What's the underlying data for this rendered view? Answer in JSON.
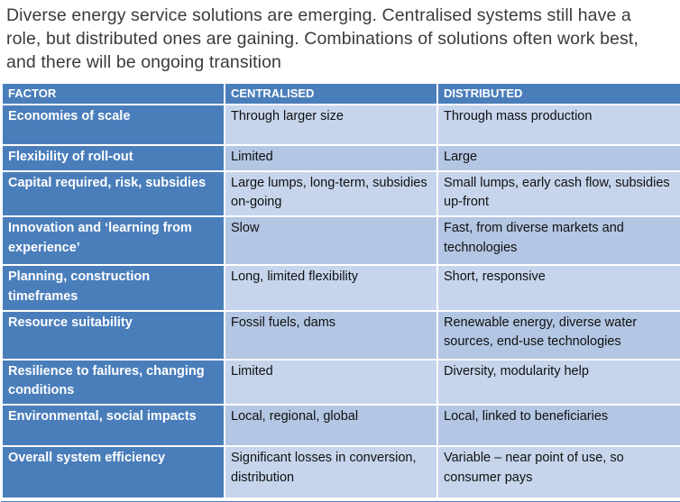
{
  "title": "Diverse energy service solutions are emerging. Centralised systems still have a role, but distributed ones are gaining. Combinations of solutions often work best, and there will be ongoing transition",
  "table": {
    "headers": [
      "FACTOR",
      "CENTRALISED",
      "DISTRIBUTED"
    ],
    "rows": [
      {
        "factor": "Economies of scale",
        "centralised": "Through larger size",
        "distributed": "Through mass production"
      },
      {
        "factor": "Flexibility of roll-out",
        "centralised": "Limited",
        "distributed": "Large"
      },
      {
        "factor": "Capital required, risk, subsidies",
        "centralised": "Large lumps, long-term, subsidies on-going",
        "distributed": "Small lumps, early cash flow, subsidies up-front"
      },
      {
        "factor": "Innovation and ‘learning from experience’",
        "centralised": "Slow",
        "distributed": "Fast, from diverse markets and technologies"
      },
      {
        "factor": "Planning, construction timeframes",
        "centralised": "Long, limited flexibility",
        "distributed": "Short, responsive"
      },
      {
        "factor": "Resource suitability",
        "centralised": "Fossil fuels, dams",
        "distributed": "Renewable energy, diverse water sources, end-use technologies"
      },
      {
        "factor": "Resilience to failures, changing conditions",
        "centralised": "Limited",
        "distributed": "Diversity, modularity help"
      },
      {
        "factor": "Environmental, social impacts",
        "centralised": "Local, regional, global",
        "distributed": "Local, linked to beneficiaries"
      },
      {
        "factor": "Overall system efficiency",
        "centralised": "Significant losses in conversion, distribution",
        "distributed": "Variable – near point of use, so consumer pays"
      }
    ],
    "colors": {
      "header_bg": "#4a7ebb",
      "factor_bg": "#4a7ebb",
      "band_light": "#c6d5ec",
      "band_dark": "#b3c6e3"
    }
  }
}
